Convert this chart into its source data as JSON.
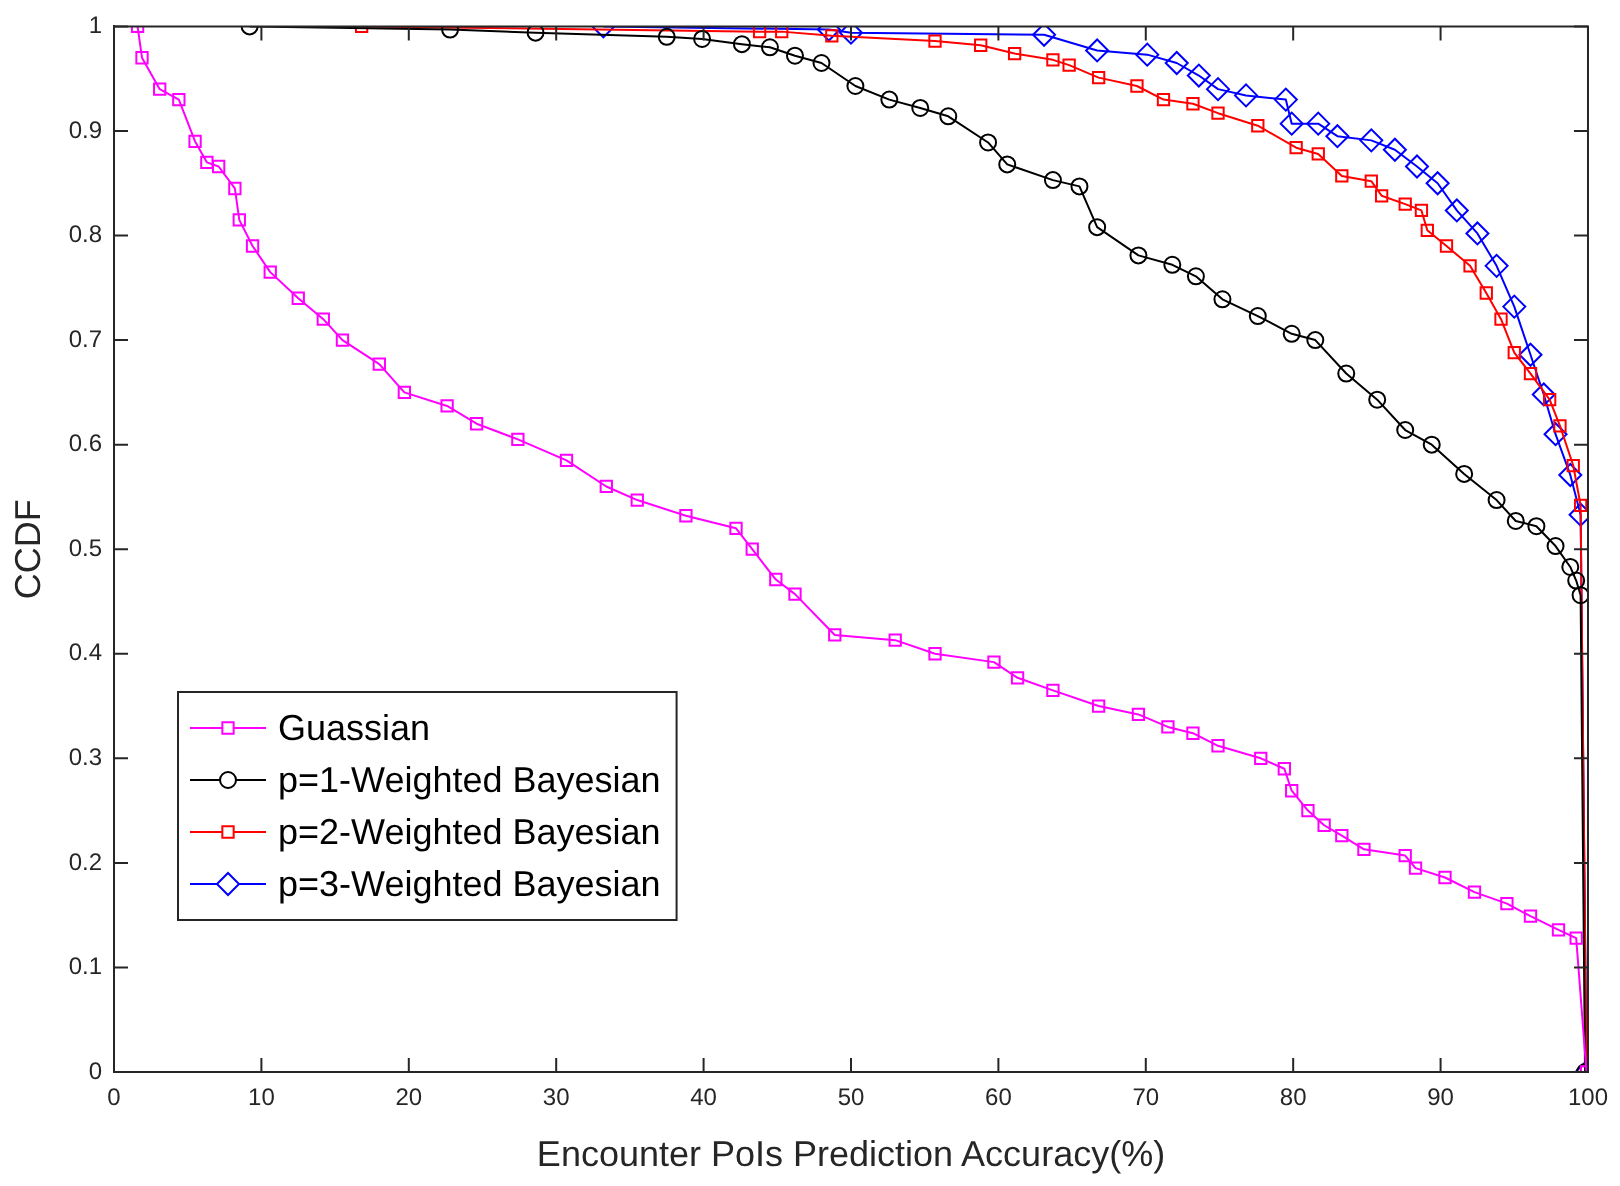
{
  "chart_data": {
    "type": "line",
    "xlabel": "Encounter PoIs Prediction Accuracy(%)",
    "ylabel": "CCDF",
    "xlim": [
      0,
      100
    ],
    "xticks": [
      0,
      10,
      20,
      30,
      40,
      50,
      60,
      70,
      80,
      90,
      100
    ],
    "ylim": [
      0,
      1
    ],
    "yticks": [
      0,
      0.1,
      0.2,
      0.3,
      0.4,
      0.5,
      0.6,
      0.7,
      0.8,
      0.9,
      1
    ],
    "grid": false,
    "legend": "bottom left",
    "series": [
      {
        "name": "Guassian",
        "color": "#ff00ff",
        "marker": "square",
        "x": [
          1.6,
          1.9,
          3.1,
          4.4,
          5.5,
          6.3,
          7.1,
          8.2,
          8.5,
          9.4,
          10.6,
          12.5,
          14.2,
          15.5,
          18.0,
          19.7,
          22.6,
          24.6,
          27.4,
          30.7,
          33.4,
          35.5,
          38.8,
          42.2,
          43.3,
          44.9,
          46.2,
          48.9,
          53.0,
          55.7,
          59.7,
          61.3,
          63.7,
          66.8,
          69.5,
          71.5,
          73.2,
          74.9,
          77.8,
          79.4,
          79.9,
          81.0,
          82.1,
          83.3,
          84.8,
          87.6,
          88.3,
          90.3,
          92.3,
          94.5,
          96.1,
          98.0,
          99.2,
          99.9
        ],
        "values": [
          1.0,
          0.97,
          0.94,
          0.93,
          0.89,
          0.87,
          0.866,
          0.845,
          0.815,
          0.79,
          0.765,
          0.74,
          0.72,
          0.7,
          0.677,
          0.65,
          0.637,
          0.62,
          0.605,
          0.585,
          0.56,
          0.547,
          0.532,
          0.52,
          0.5,
          0.471,
          0.457,
          0.418,
          0.413,
          0.4,
          0.392,
          0.377,
          0.365,
          0.35,
          0.342,
          0.33,
          0.324,
          0.312,
          0.3,
          0.29,
          0.269,
          0.25,
          0.236,
          0.226,
          0.213,
          0.207,
          0.195,
          0.186,
          0.172,
          0.161,
          0.149,
          0.136,
          0.128,
          0.0
        ]
      },
      {
        "name": "p=1-Weighted Bayesian",
        "color": "#000000",
        "marker": "circle",
        "x": [
          9.2,
          22.8,
          28.6,
          37.5,
          39.9,
          42.6,
          44.5,
          46.2,
          48.0,
          50.3,
          52.6,
          54.7,
          56.6,
          59.3,
          60.6,
          63.7,
          65.5,
          66.7,
          69.5,
          71.8,
          73.4,
          75.2,
          77.6,
          79.9,
          81.5,
          83.6,
          85.7,
          87.6,
          89.4,
          91.6,
          93.8,
          95.1,
          96.5,
          97.8,
          98.8,
          99.2,
          99.5,
          99.8
        ],
        "values": [
          1.0,
          0.997,
          0.994,
          0.99,
          0.988,
          0.983,
          0.98,
          0.972,
          0.965,
          0.943,
          0.93,
          0.922,
          0.914,
          0.889,
          0.868,
          0.853,
          0.847,
          0.808,
          0.781,
          0.772,
          0.761,
          0.739,
          0.723,
          0.706,
          0.7,
          0.668,
          0.643,
          0.614,
          0.6,
          0.572,
          0.547,
          0.527,
          0.522,
          0.503,
          0.483,
          0.47,
          0.456,
          0.0
        ]
      },
      {
        "name": "p=2-Weighted Bayesian",
        "color": "#ff0000",
        "marker": "square",
        "x": [
          16.8,
          43.8,
          45.3,
          48.7,
          55.7,
          58.8,
          61.1,
          63.7,
          64.8,
          66.8,
          69.4,
          71.2,
          73.2,
          74.9,
          77.6,
          80.2,
          81.7,
          83.3,
          85.3,
          86.0,
          87.6,
          88.7,
          89.1,
          90.4,
          92.0,
          93.1,
          94.1,
          95.0,
          96.1,
          97.4,
          98.1,
          99.0,
          99.5,
          99.9
        ],
        "values": [
          1.0,
          0.995,
          0.995,
          0.991,
          0.986,
          0.982,
          0.974,
          0.968,
          0.963,
          0.951,
          0.943,
          0.93,
          0.926,
          0.917,
          0.905,
          0.884,
          0.878,
          0.857,
          0.852,
          0.838,
          0.83,
          0.824,
          0.805,
          0.79,
          0.771,
          0.745,
          0.72,
          0.688,
          0.668,
          0.643,
          0.618,
          0.58,
          0.542,
          0.0
        ]
      },
      {
        "name": "p=3-Weighted Bayesian",
        "color": "#0000ff",
        "marker": "diamond",
        "x": [
          33.2,
          48.5,
          50.0,
          63.1,
          66.7,
          70.1,
          72.1,
          73.6,
          74.9,
          76.8,
          79.5,
          79.9,
          81.7,
          83.0,
          85.3,
          86.9,
          88.4,
          89.8,
          91.1,
          92.5,
          93.8,
          95.0,
          96.1,
          97.0,
          97.8,
          98.8,
          99.5,
          99.9
        ],
        "values": [
          1.0,
          0.997,
          0.994,
          0.992,
          0.977,
          0.973,
          0.965,
          0.953,
          0.94,
          0.934,
          0.93,
          0.907,
          0.907,
          0.895,
          0.891,
          0.882,
          0.866,
          0.85,
          0.824,
          0.802,
          0.771,
          0.732,
          0.686,
          0.648,
          0.61,
          0.571,
          0.533,
          0.0
        ]
      }
    ]
  }
}
